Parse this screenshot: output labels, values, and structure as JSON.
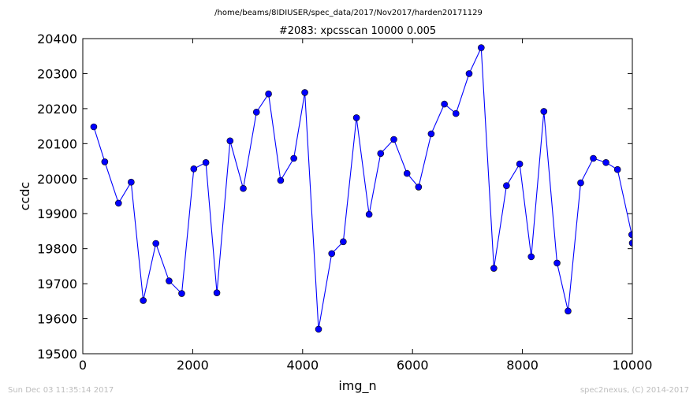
{
  "header": {
    "path": "/home/beams/8IDIUSER/spec_data/2017/Nov2017/harden20171129"
  },
  "footer": {
    "timestamp": "Sun Dec 03 11:35:14 2017",
    "credit": "spec2nexus, (C) 2014-2017"
  },
  "colors": {
    "series": "#0000ff",
    "frame": "#000000",
    "footer_text": "#bdbdbd"
  },
  "chart_data": {
    "type": "line",
    "title": "#2083: xpcsscan 10000 0.005",
    "xlabel": "img_n",
    "ylabel": "ccdc",
    "xlim": [
      0,
      10000
    ],
    "ylim": [
      19500,
      20400
    ],
    "xticks": [
      "0",
      "2000",
      "4000",
      "6000",
      "8000",
      "10000"
    ],
    "yticks": [
      "19500",
      "19600",
      "19700",
      "19800",
      "19900",
      "20000",
      "20100",
      "20200",
      "20300",
      "20400"
    ],
    "grid": false,
    "marker": "circle",
    "series": [
      {
        "x": [
          200,
          400,
          650,
          880,
          1100,
          1330,
          1570,
          1800,
          2020,
          2240,
          2440,
          2680,
          2920,
          3160,
          3380,
          3600,
          3840,
          4040,
          4290,
          4530,
          4740,
          4980,
          5210,
          5420,
          5660,
          5900,
          6110,
          6340,
          6580,
          6790,
          7030,
          7250,
          7480,
          7710,
          7950,
          8160,
          8390,
          8630,
          8830,
          9060,
          9290,
          9520,
          9730,
          9990,
          10000
        ],
        "y": [
          20148,
          20048,
          19930,
          19990,
          19652,
          19815,
          19708,
          19672,
          20028,
          20046,
          19674,
          20108,
          19972,
          20190,
          20242,
          19995,
          20058,
          20246,
          19570,
          19786,
          19820,
          20174,
          19898,
          20072,
          20112,
          20015,
          19976,
          20128,
          20213,
          20186,
          20300,
          20374,
          19744,
          19980,
          20042,
          19777,
          20192,
          19759,
          19622,
          19988,
          20058,
          20046,
          20026,
          19840,
          19816
        ]
      }
    ]
  }
}
